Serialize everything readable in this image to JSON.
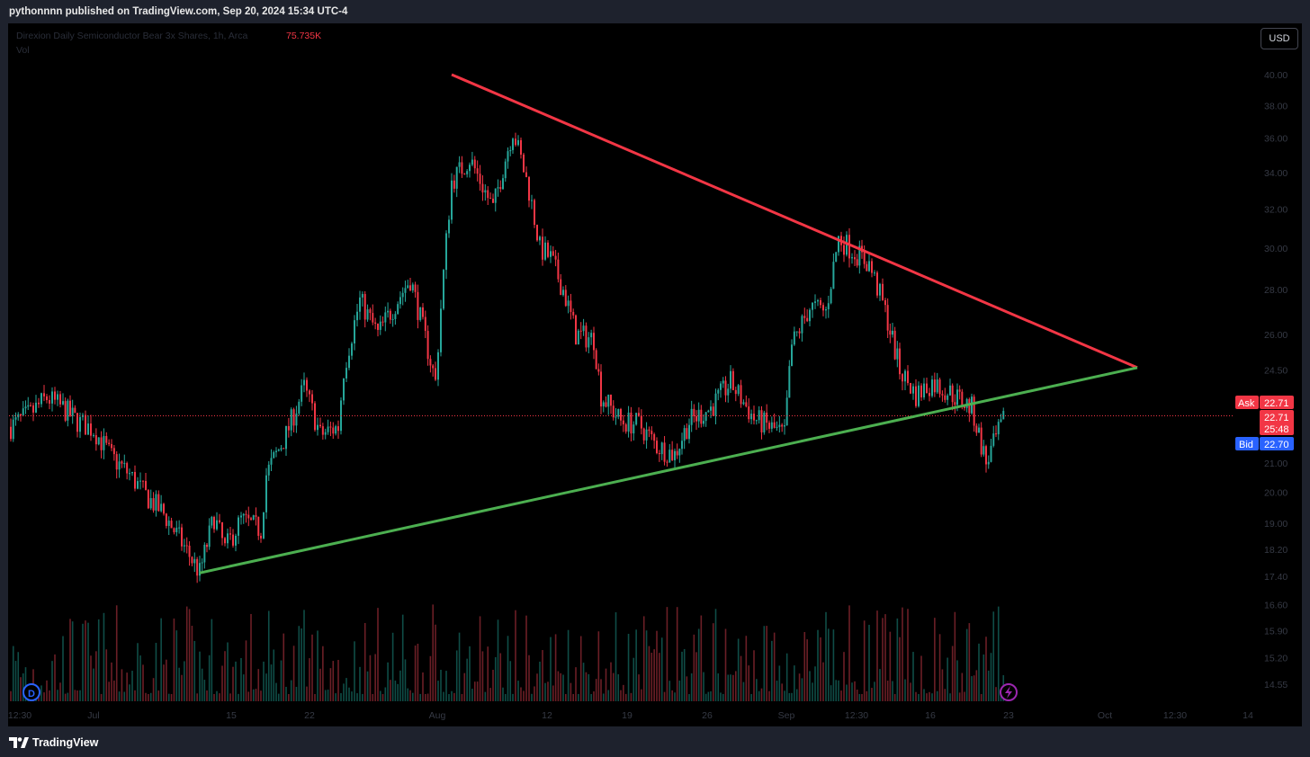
{
  "header": {
    "publisher_line": "pythonnnn published on TradingView.com, Sep 20, 2024 15:34 UTC-4"
  },
  "legend": {
    "title": "Direxion Daily Semiconductor Bear 3x Shares, 1h, Arca",
    "vol_prefix": "Vol",
    "vol_value": "75.735K",
    "vol_label": "Vol"
  },
  "controls": {
    "currency": "USD"
  },
  "price_tags": {
    "ask_label": "Ask",
    "ask_value": "22.71",
    "last_value": "22.71",
    "countdown": "25:48",
    "bid_label": "Bid",
    "bid_value": "22.70"
  },
  "badges": {
    "dividend": "D"
  },
  "footer": {
    "brand": "TradingView"
  },
  "colors": {
    "up": "#26a69a",
    "down": "#f23645",
    "resistance": "#f23645",
    "support": "#4caf50",
    "ask": "#f23645",
    "bid": "#2962ff"
  },
  "chart_data": {
    "type": "candlestick",
    "symbol": "SOXS",
    "interval": "1h",
    "price_axis": {
      "scale": "log",
      "ticks": [
        "40.00",
        "38.00",
        "36.00",
        "34.00",
        "32.00",
        "30.00",
        "28.00",
        "26.00",
        "24.50",
        "21.00",
        "20.00",
        "19.00",
        "18.20",
        "17.40",
        "16.60",
        "15.90",
        "15.20",
        "14.55"
      ]
    },
    "time_axis": {
      "ticks": [
        "12:30",
        "Jul",
        "15",
        "22",
        "Aug",
        "12",
        "19",
        "26",
        "Sep",
        "12:30",
        "16",
        "23",
        "Oct",
        "12:30",
        "14"
      ]
    },
    "price_path": [
      [
        "Jun 28",
        22.3
      ],
      [
        "Jul 1",
        22.8
      ],
      [
        "Jul 2",
        23.4
      ],
      [
        "Jul 3",
        23.0
      ],
      [
        "Jul 5",
        22.5
      ],
      [
        "Jul 8",
        22.2
      ],
      [
        "Jul 9",
        21.2
      ],
      [
        "Jul 10",
        20.6
      ],
      [
        "Jul 11",
        19.9
      ],
      [
        "Jul 12",
        19.3
      ],
      [
        "Jul 15",
        17.5
      ],
      [
        "Jul 16",
        19.2
      ],
      [
        "Jul 17",
        18.2
      ],
      [
        "Jul 18",
        19.1
      ],
      [
        "Jul 19",
        18.8
      ],
      [
        "Jul 22",
        20.6
      ],
      [
        "Jul 23",
        22.0
      ],
      [
        "Jul 24",
        23.8
      ],
      [
        "Jul 25",
        22.0
      ],
      [
        "Jul 26",
        22.3
      ],
      [
        "Jul 29",
        24.5
      ],
      [
        "Jul 30",
        27.5
      ],
      [
        "Jul 31",
        26.0
      ],
      [
        "Aug 1",
        28.5
      ],
      [
        "Aug 2",
        24.0
      ],
      [
        "Aug 5",
        33.5
      ],
      [
        "Aug 6",
        34.8
      ],
      [
        "Aug 7",
        32.0
      ],
      [
        "Aug 8",
        36.5
      ],
      [
        "Aug 9",
        33.0
      ],
      [
        "Aug 12",
        30.0
      ],
      [
        "Aug 13",
        29.5
      ],
      [
        "Aug 14",
        28.0
      ],
      [
        "Aug 15",
        26.0
      ],
      [
        "Aug 16",
        25.8
      ],
      [
        "Aug 19",
        23.5
      ],
      [
        "Aug 20",
        22.5
      ],
      [
        "Aug 21",
        22.4
      ],
      [
        "Aug 22",
        21.6
      ],
      [
        "Aug 23",
        21.3
      ],
      [
        "Aug 26",
        22.5
      ],
      [
        "Aug 27",
        23.0
      ],
      [
        "Aug 28",
        24.0
      ],
      [
        "Aug 29",
        22.6
      ],
      [
        "Aug 30",
        22.0
      ],
      [
        "Sep 3",
        25.5
      ],
      [
        "Sep 4",
        27.2
      ],
      [
        "Sep 5",
        27.0
      ],
      [
        "Sep 6",
        30.5
      ],
      [
        "Sep 9",
        29.8
      ],
      [
        "Sep 10",
        29.2
      ],
      [
        "Sep 11",
        27.0
      ],
      [
        "Sep 12",
        24.5
      ],
      [
        "Sep 13",
        23.5
      ],
      [
        "Sep 16",
        24.0
      ],
      [
        "Sep 17",
        23.6
      ],
      [
        "Sep 18",
        23.0
      ],
      [
        "Sep 19",
        21.0
      ],
      [
        "Sep 20",
        22.71
      ]
    ],
    "volume": {
      "last": "75.735K"
    },
    "trendlines": [
      {
        "name": "resistance",
        "from": [
          "Aug 5",
          40.0
        ],
        "to": [
          "Sep 30",
          24.6
        ]
      },
      {
        "name": "support",
        "from": [
          "Jul 15",
          17.5
        ],
        "to": [
          "Sep 30",
          24.6
        ]
      }
    ],
    "last_price": 22.71
  }
}
